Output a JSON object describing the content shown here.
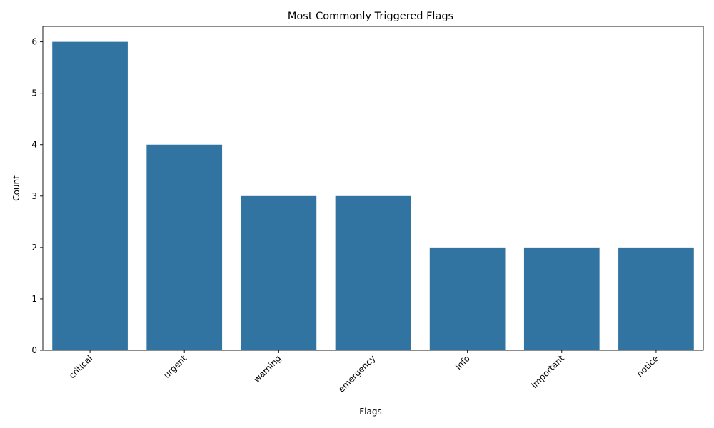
{
  "chart_data": {
    "type": "bar",
    "title": "Most Commonly Triggered Flags",
    "xlabel": "Flags",
    "ylabel": "Count",
    "categories": [
      "critical",
      "urgent",
      "warning",
      "emergency",
      "info",
      "important",
      "notice"
    ],
    "values": [
      6,
      4,
      3,
      3,
      2,
      2,
      2
    ],
    "ylim": [
      0,
      6.3
    ],
    "yticks": [
      0,
      1,
      2,
      3,
      4,
      5,
      6
    ],
    "bar_color": "#3274a1",
    "grid": false,
    "legend": "none",
    "xtick_rotation": 45
  }
}
